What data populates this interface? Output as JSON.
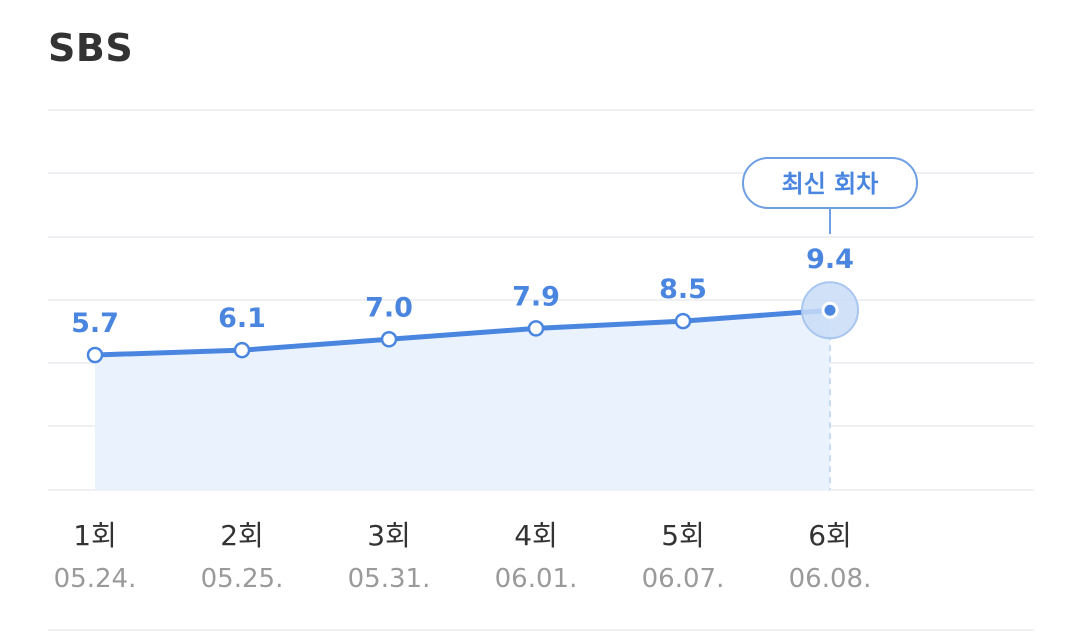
{
  "title": "SBS",
  "latest_badge": "최신 회차",
  "colors": {
    "accent": "#4a86e0",
    "area_fill": "#eaf2fd",
    "grid": "#eef0f3",
    "title": "#333333",
    "date": "#9a9a9a"
  },
  "chart_data": {
    "type": "area",
    "categories": [
      "1회",
      "2회",
      "3회",
      "4회",
      "5회",
      "6회"
    ],
    "dates": [
      "05.24.",
      "05.25.",
      "05.31.",
      "06.01.",
      "06.07.",
      "06.08."
    ],
    "values": [
      5.7,
      6.1,
      7.0,
      7.9,
      8.5,
      9.4
    ],
    "value_labels": [
      "5.7",
      "6.1",
      "7.0",
      "7.9",
      "8.5",
      "9.4"
    ],
    "highlight_index": 5,
    "grid": true
  }
}
